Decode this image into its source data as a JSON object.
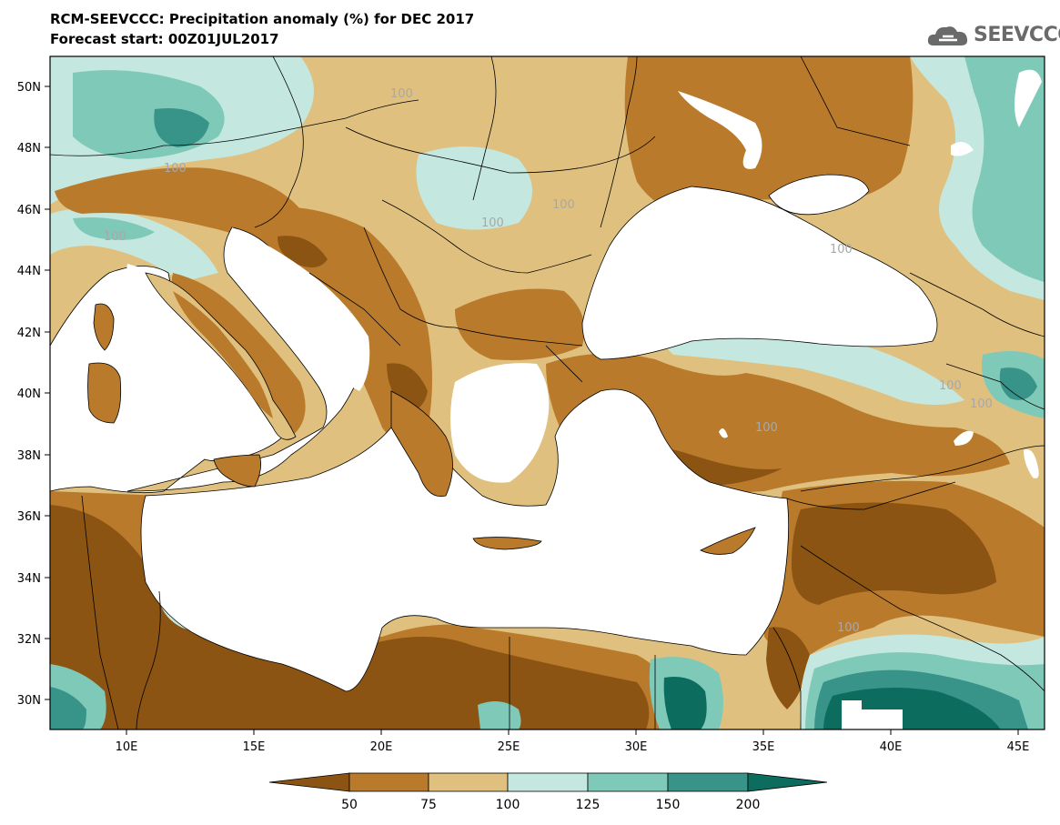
{
  "title": {
    "line1": "RCM-SEEVCCC: Precipitation anomaly (%) for DEC 2017",
    "line2": "Forecast start: 00Z01JUL2017"
  },
  "logo": {
    "text": "SEEVCCC",
    "icon": "cloud-icon"
  },
  "map": {
    "variable": "Precipitation anomaly (%)",
    "lon_range": [
      7,
      46
    ],
    "lat_range": [
      29,
      51
    ],
    "lon_ticks": [
      "10E",
      "15E",
      "20E",
      "25E",
      "30E",
      "35E",
      "40E",
      "45E"
    ],
    "lat_ticks": [
      "30N",
      "32N",
      "34N",
      "36N",
      "38N",
      "40N",
      "42N",
      "44N",
      "46N",
      "48N",
      "50N"
    ],
    "contour_labels": [
      "100",
      "100",
      "100",
      "100",
      "100",
      "100",
      "100",
      "100",
      "100",
      "100"
    ]
  },
  "colorbar": {
    "levels": [
      "50",
      "75",
      "100",
      "125",
      "150",
      "200"
    ],
    "colors": [
      "#8b5413",
      "#b97a2c",
      "#e0c07f",
      "#c4e8df",
      "#7fc9b9",
      "#389488",
      "#0c6d5f"
    ]
  },
  "palette": {
    "dry_extreme": "#8b5413",
    "dry": "#b97a2c",
    "slightly_dry": "#e0c07f",
    "slightly_wet": "#c4e8df",
    "wet": "#7fc9b9",
    "very_wet": "#389488",
    "wet_extreme": "#0c6d5f",
    "sea": "#ffffff"
  }
}
